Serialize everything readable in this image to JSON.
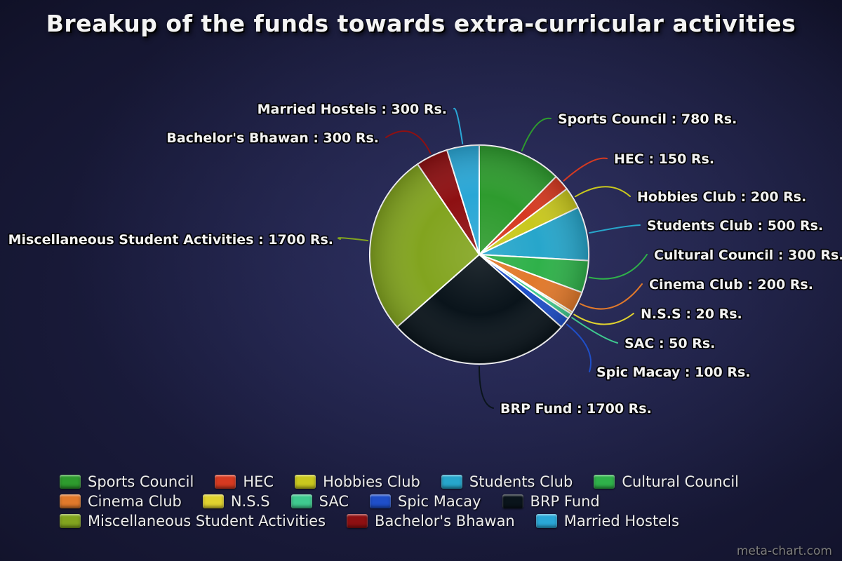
{
  "page": {
    "title": "Breakup of the funds towards extra-curricular activities",
    "watermark": "meta-chart.com"
  },
  "chart_data": {
    "type": "pie",
    "title": "Breakup of the funds towards extra-curricular activities",
    "unit": "Rs.",
    "total": 6300,
    "direction": "clockwise",
    "start_angle_deg": 0,
    "legend_position": "bottom",
    "segments": [
      {
        "name": "Sports Council",
        "value": 780,
        "color": "#2E9B2E",
        "label": "Sports Council : 780 Rs."
      },
      {
        "name": "HEC",
        "value": 150,
        "color": "#D63A21",
        "label": "HEC : 150 Rs."
      },
      {
        "name": "Hobbies Club",
        "value": 200,
        "color": "#C9C81E",
        "label": "Hobbies Club : 200 Rs."
      },
      {
        "name": "Students Club",
        "value": 500,
        "color": "#27A6CB",
        "label": "Students Club : 500 Rs."
      },
      {
        "name": "Cultural Council",
        "value": 300,
        "color": "#2FB14A",
        "label": "Cultural Council : 300 Rs."
      },
      {
        "name": "Cinema Club",
        "value": 200,
        "color": "#E1792B",
        "label": "Cinema Club : 200 Rs."
      },
      {
        "name": "N.S.S",
        "value": 20,
        "color": "#E0D22F",
        "label": "N.S.S : 20 Rs."
      },
      {
        "name": "SAC",
        "value": 50,
        "color": "#3FC98F",
        "label": "SAC : 50 Rs."
      },
      {
        "name": "Spic Macay",
        "value": 100,
        "color": "#1F4FC8",
        "label": "Spic Macay : 100 Rs."
      },
      {
        "name": "BRP Fund",
        "value": 1700,
        "color": "#0A141B",
        "label": "BRP Fund : 1700 Rs."
      },
      {
        "name": "Miscellaneous Student Activities",
        "value": 1700,
        "color": "#82A41F",
        "label": "Miscellaneous Student Activities : 1700 Rs."
      },
      {
        "name": "Bachelor's Bhawan",
        "value": 300,
        "color": "#8E1012",
        "label": "Bachelor's Bhawan : 300 Rs."
      },
      {
        "name": "Married Hostels",
        "value": 300,
        "color": "#2AA7D6",
        "label": "Married Hostels : 300 Rs."
      }
    ]
  }
}
